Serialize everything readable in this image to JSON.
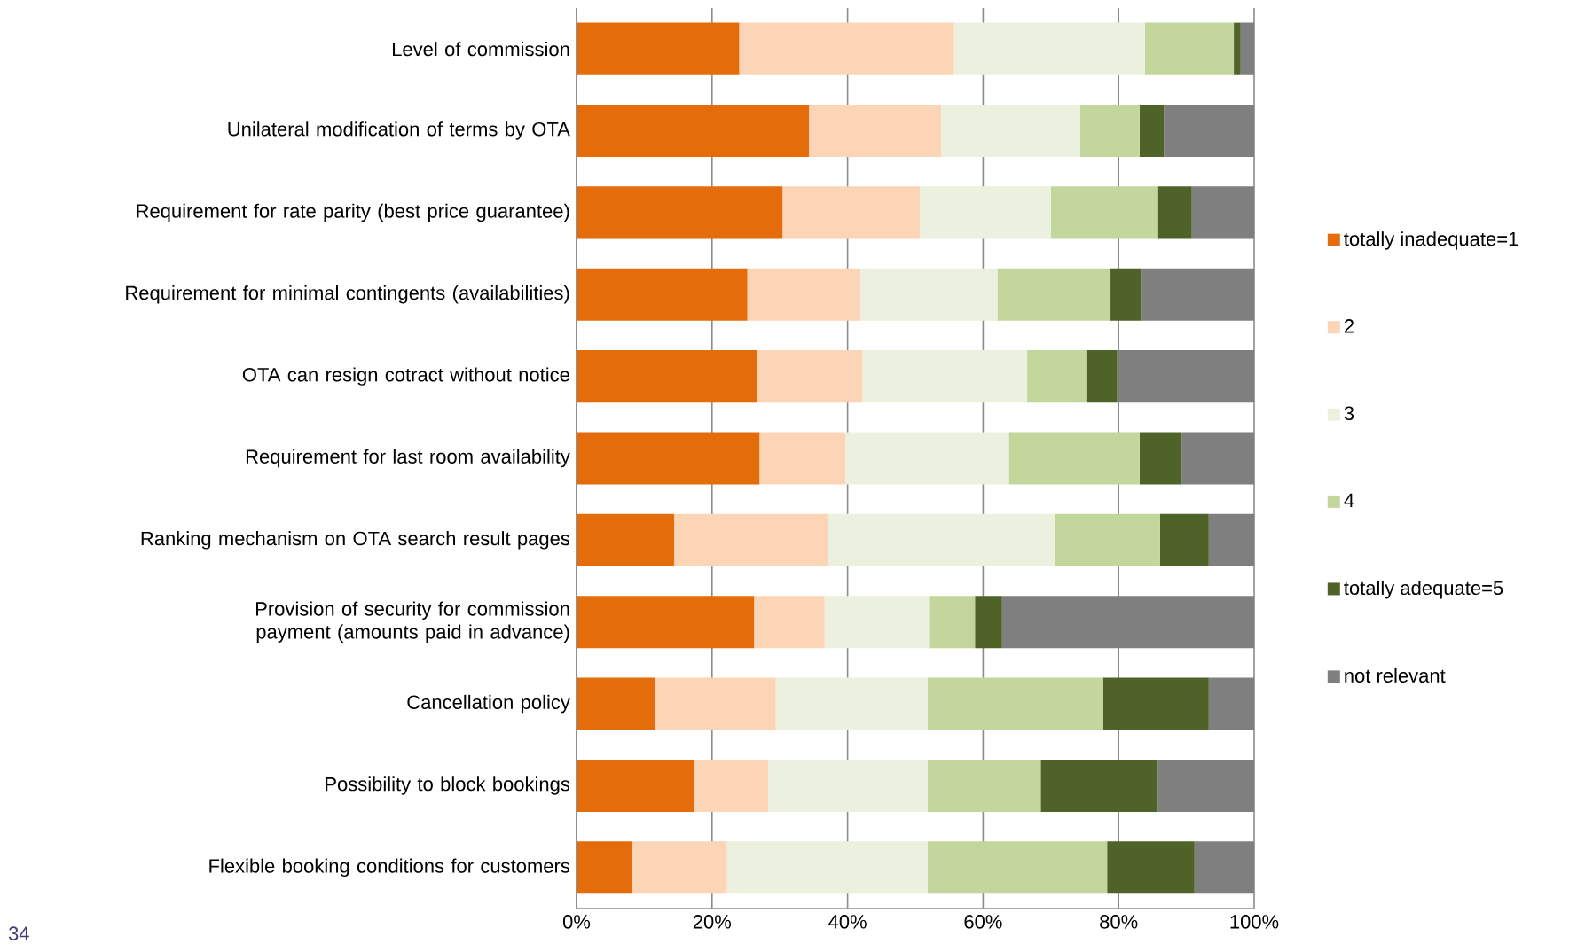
{
  "chart_data": {
    "type": "bar",
    "orientation": "horizontal",
    "stacked": true,
    "categories": [
      "Level of commission",
      "Unilateral modification of terms by OTA",
      "Requirement for rate parity (best price guarantee)",
      "Requirement for  minimal contingents (availabilities)",
      "OTA can resign cotract without notice",
      "Requirement for last room availability",
      "Ranking mechanism on OTA search result pages",
      "Provision of security for commission payment (amounts paid in advance)",
      "Cancellation policy",
      "Possibility to block bookings",
      "Flexible booking conditions for customers"
    ],
    "series": [
      {
        "name": "totally inadequate=1",
        "color": "#e46c0a",
        "values": [
          24.0,
          34.3,
          30.4,
          25.2,
          26.7,
          27.0,
          14.4,
          26.2,
          11.6,
          17.3,
          8.2
        ]
      },
      {
        "name": "2",
        "color": "#fbd5b5",
        "values": [
          31.7,
          19.5,
          20.3,
          16.7,
          15.5,
          12.7,
          22.7,
          10.4,
          17.8,
          11.0,
          14.0
        ]
      },
      {
        "name": "3",
        "color": "#ebf1de",
        "values": [
          28.2,
          20.5,
          19.3,
          20.2,
          24.3,
          24.1,
          33.5,
          15.4,
          22.4,
          23.5,
          29.6
        ]
      },
      {
        "name": "4",
        "color": "#c3d69b",
        "values": [
          13.1,
          8.8,
          15.8,
          16.7,
          8.7,
          19.3,
          15.5,
          6.8,
          25.9,
          16.7,
          26.5
        ]
      },
      {
        "name": "totally adequate=5",
        "color": "#4f6228",
        "values": [
          1.0,
          3.6,
          5.0,
          4.5,
          4.6,
          6.2,
          7.2,
          4.0,
          15.6,
          17.3,
          12.9
        ]
      },
      {
        "name": "not relevant",
        "color": "#7f7f7f",
        "values": [
          2.0,
          13.3,
          9.2,
          16.7,
          20.2,
          10.7,
          6.7,
          37.2,
          6.7,
          14.2,
          8.8
        ]
      }
    ],
    "xlim": [
      0,
      100
    ],
    "xticks": [
      {
        "value": 0,
        "label": "0%"
      },
      {
        "value": 20,
        "label": "20%"
      },
      {
        "value": 40,
        "label": "40%"
      },
      {
        "value": 60,
        "label": "60%"
      },
      {
        "value": 80,
        "label": "80%"
      },
      {
        "value": 100,
        "label": "100%"
      }
    ],
    "grid": "x",
    "legend": "right",
    "annotations": [
      "34"
    ]
  }
}
